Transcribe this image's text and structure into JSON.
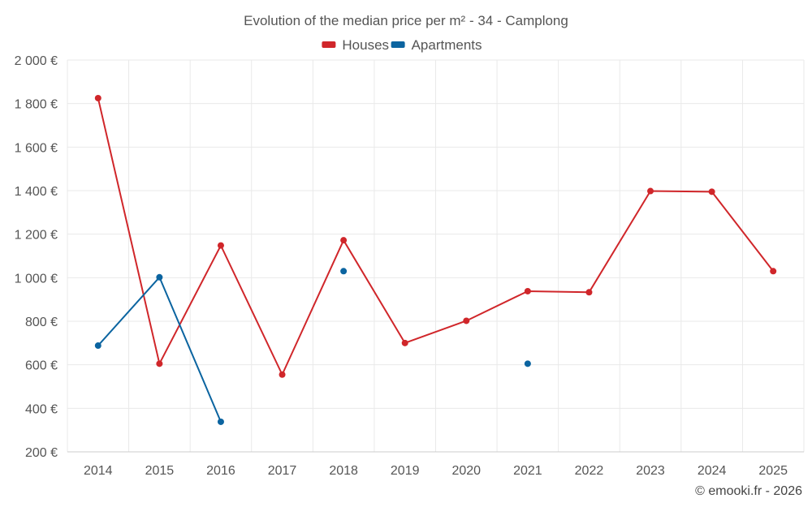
{
  "chart_data": {
    "type": "line",
    "title": "Evolution of the median price per m² - 34 - Camplong",
    "categories": [
      "2014",
      "2015",
      "2016",
      "2017",
      "2018",
      "2019",
      "2020",
      "2021",
      "2022",
      "2023",
      "2024",
      "2025"
    ],
    "ylim": [
      200,
      2000
    ],
    "yticks": [
      200,
      400,
      600,
      800,
      1000,
      1200,
      1400,
      1600,
      1800,
      2000
    ],
    "ytick_labels": [
      "200 €",
      "400 €",
      "600 €",
      "800 €",
      "1 000 €",
      "1 200 €",
      "1 400 €",
      "1 600 €",
      "1 800 €",
      "2 000 €"
    ],
    "grid": true,
    "legend_position": "top-center",
    "series": [
      {
        "name": "Houses",
        "color": "#d0262a",
        "values": [
          1825,
          605,
          1148,
          555,
          1172,
          700,
          802,
          938,
          933,
          1398,
          1395,
          1030
        ]
      },
      {
        "name": "Apartments",
        "color": "#0b64a0",
        "values": [
          688,
          1002,
          338,
          null,
          1030,
          null,
          null,
          605,
          null,
          null,
          null,
          null
        ]
      }
    ],
    "credit": "© emooki.fr - 2026"
  }
}
